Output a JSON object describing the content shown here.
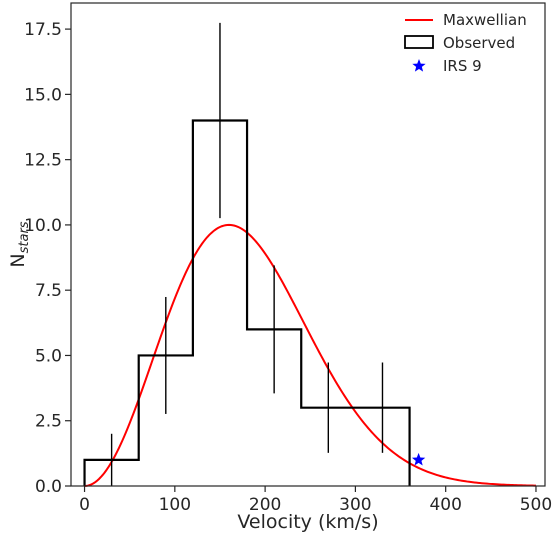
{
  "chart_data": {
    "type": "histogram",
    "xlabel": "Velocity (km/s)",
    "ylabel_main": "N",
    "ylabel_sub": "stars",
    "xlim": [
      -15,
      510
    ],
    "ylim": [
      0,
      18.5
    ],
    "xticks": [
      0,
      100,
      200,
      300,
      400,
      500
    ],
    "yticks": [
      0,
      2.5,
      5,
      7.5,
      10,
      12.5,
      15,
      17.5
    ],
    "xtick_labels": [
      "0",
      "100",
      "200",
      "300",
      "400",
      "500"
    ],
    "ytick_labels": [
      "0.0",
      "2.5",
      "5.0",
      "7.5",
      "10.0",
      "12.5",
      "15.0",
      "17.5"
    ],
    "grid": false,
    "legend_position": "top-right",
    "series": [
      {
        "name": "Observed",
        "kind": "step-histogram",
        "color": "#000000",
        "bin_edges": [
          0,
          60,
          120,
          180,
          240,
          300,
          360
        ],
        "counts": [
          1,
          5,
          14,
          6,
          3,
          3
        ],
        "bin_centers": [
          30,
          90,
          150,
          210,
          270,
          330
        ],
        "errors": [
          1,
          2.24,
          3.74,
          2.45,
          1.73,
          1.73
        ]
      },
      {
        "name": "Maxwellian",
        "kind": "line",
        "color": "#ff0000",
        "peak_x": 160,
        "peak_y": 10,
        "x_range": [
          0,
          500
        ]
      },
      {
        "name": "IRS 9",
        "kind": "marker",
        "color": "#0000ff",
        "marker": "star",
        "x": 370,
        "y": 1.0
      }
    ]
  }
}
